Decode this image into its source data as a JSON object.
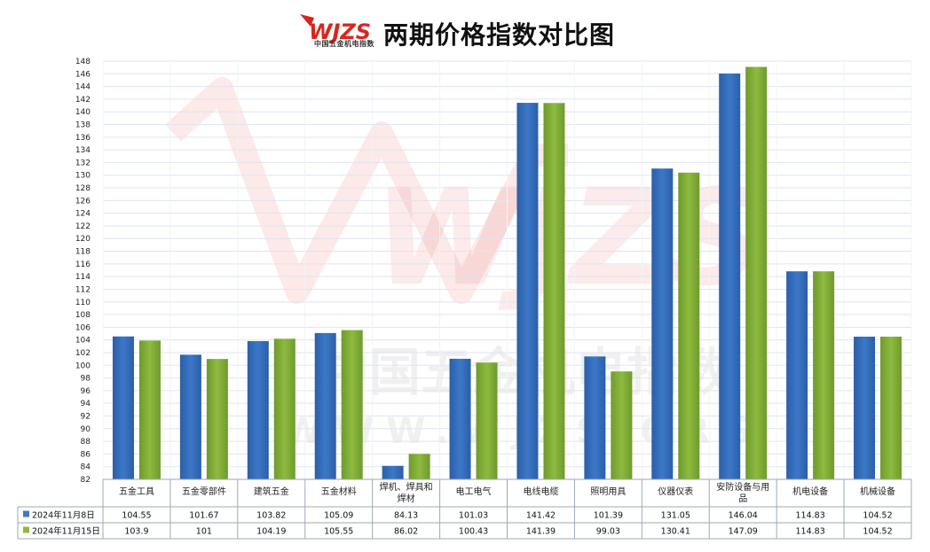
{
  "header": {
    "logo_text": "中国五金机电指数",
    "logo_url_text": "www.wjzs.org",
    "title": "两期价格指数对比图"
  },
  "watermark": {
    "mark": "WJZS",
    "cn": "中国五金机电指数",
    "url": "WWW.WJZS.ORG"
  },
  "colors": {
    "series1": "#3C78C8",
    "series2": "#8DBB3E",
    "grid": "#DDE6F0",
    "watermark": "#E3473E"
  },
  "chart_data": {
    "type": "bar",
    "title": "两期价格指数对比图",
    "categories": [
      "五金工具",
      "五金零部件",
      "建筑五金",
      "五金材料",
      "焊机、焊具和焊材",
      "电工电气",
      "电线电缆",
      "照明用具",
      "仪器仪表",
      "安防设备与用品",
      "机电设备",
      "机械设备"
    ],
    "series": [
      {
        "name": "2024年11月8日",
        "values": [
          104.55,
          101.67,
          103.82,
          105.09,
          84.13,
          101.03,
          141.42,
          101.39,
          131.05,
          146.04,
          114.83,
          104.52
        ]
      },
      {
        "name": "2024年11月15日",
        "values": [
          103.9,
          101,
          104.19,
          105.55,
          86.02,
          100.43,
          141.39,
          99.03,
          130.41,
          147.09,
          114.83,
          104.52
        ]
      }
    ],
    "ylim": [
      82,
      148
    ],
    "ytick_step": 2,
    "grid": true,
    "legend": "data-table"
  }
}
